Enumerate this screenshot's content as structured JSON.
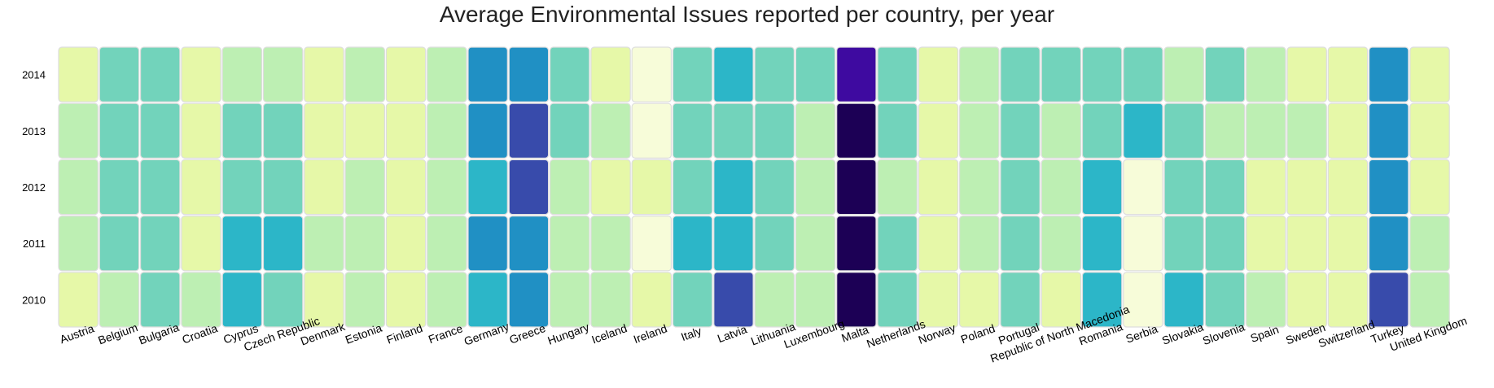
{
  "chart_data": {
    "type": "heatmap",
    "title": "Average Environmental Issues reported per country, per year",
    "xlabel": "",
    "ylabel": "",
    "x_categories": [
      "Austria",
      "Belgium",
      "Bulgaria",
      "Croatia",
      "Cyprus",
      "Czech Republic",
      "Denmark",
      "Estonia",
      "Finland",
      "France",
      "Germany",
      "Greece",
      "Hungary",
      "Iceland",
      "Ireland",
      "Italy",
      "Latvia",
      "Lithuania",
      "Luxembourg",
      "Malta",
      "Netherlands",
      "Norway",
      "Poland",
      "Portugal",
      "Republic of North Macedonia",
      "Romania",
      "Serbia",
      "Slovakia",
      "Slovenia",
      "Spain",
      "Sweden",
      "Switzerland",
      "Turkey",
      "United Kingdom"
    ],
    "y_categories": [
      "2014",
      "2013",
      "2012",
      "2011",
      "2010"
    ],
    "colorscale": [
      "#f7fcd9",
      "#e6f8a8",
      "#bdefb3",
      "#72d3bb",
      "#2cb6c8",
      "#2090c4",
      "#384bab",
      "#3e0aa0",
      "#1c0055"
    ],
    "values": [
      [
        1,
        3,
        3,
        1,
        2,
        2,
        1,
        2,
        1,
        2,
        5,
        5,
        3,
        1,
        0,
        3,
        4,
        3,
        3,
        7,
        3,
        1,
        2,
        3,
        3,
        3,
        3,
        2,
        3,
        2,
        1,
        1,
        5,
        1
      ],
      [
        2,
        3,
        3,
        1,
        3,
        3,
        1,
        1,
        1,
        2,
        5,
        6,
        3,
        2,
        0,
        3,
        3,
        3,
        2,
        8,
        3,
        1,
        2,
        3,
        2,
        3,
        4,
        3,
        2,
        2,
        2,
        1,
        5,
        1
      ],
      [
        2,
        3,
        3,
        1,
        3,
        3,
        1,
        2,
        1,
        2,
        4,
        6,
        2,
        1,
        1,
        3,
        4,
        3,
        2,
        8,
        2,
        1,
        2,
        3,
        2,
        4,
        0,
        3,
        3,
        1,
        1,
        1,
        5,
        1
      ],
      [
        2,
        3,
        3,
        1,
        4,
        4,
        2,
        2,
        1,
        2,
        5,
        5,
        2,
        2,
        0,
        4,
        4,
        3,
        2,
        8,
        3,
        1,
        2,
        3,
        2,
        4,
        0,
        3,
        3,
        1,
        1,
        1,
        5,
        2
      ],
      [
        1,
        2,
        3,
        2,
        4,
        3,
        1,
        2,
        1,
        2,
        4,
        5,
        2,
        2,
        1,
        3,
        6,
        2,
        2,
        8,
        3,
        1,
        1,
        3,
        1,
        4,
        0,
        4,
        3,
        2,
        1,
        1,
        6,
        2
      ]
    ]
  }
}
